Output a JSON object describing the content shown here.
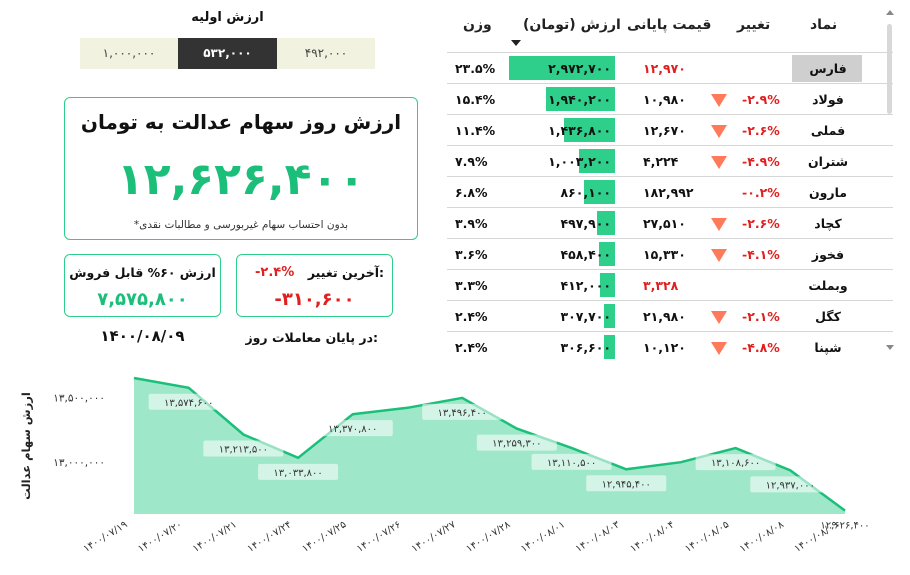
{
  "table": {
    "headers": {
      "symbol": "نماد",
      "change": "تغییر",
      "final_price": "قیمت پایانی",
      "value": "ارزش (تومان)",
      "weight": "وزن"
    },
    "rows": [
      {
        "symbol": "فارس",
        "change": "",
        "final_price": "۱۲,۹۷۰",
        "final_red": true,
        "value": "۲,۹۷۲,۷۰۰",
        "value_fraction": 1.0,
        "weight": "۲۳.۵%",
        "down": false,
        "highlight": true
      },
      {
        "symbol": "فولاد",
        "change": "-۲.۹%",
        "final_price": "۱۰,۹۸۰",
        "final_red": false,
        "value": "۱,۹۴۰,۲۰۰",
        "value_fraction": 0.653,
        "weight": "۱۵.۴%",
        "down": true,
        "highlight": false
      },
      {
        "symbol": "فملی",
        "change": "-۲.۶%",
        "final_price": "۱۲,۶۷۰",
        "final_red": false,
        "value": "۱,۴۳۶,۸۰۰",
        "value_fraction": 0.483,
        "weight": "۱۱.۴%",
        "down": true,
        "highlight": false
      },
      {
        "symbol": "شتران",
        "change": "-۴.۹%",
        "final_price": "۴,۲۲۴",
        "final_red": false,
        "value": "۱,۰۰۳,۲۰۰",
        "value_fraction": 0.337,
        "weight": "۷.۹%",
        "down": true,
        "highlight": false
      },
      {
        "symbol": "مارون",
        "change": "-۰.۲%",
        "final_price": "۱۸۲,۹۹۲",
        "final_red": false,
        "value": "۸۶۰,۱۰۰",
        "value_fraction": 0.289,
        "weight": "۶.۸%",
        "down": false,
        "highlight": false
      },
      {
        "symbol": "کچاد",
        "change": "-۲.۶%",
        "final_price": "۲۷,۵۱۰",
        "final_red": false,
        "value": "۴۹۷,۹۰۰",
        "value_fraction": 0.168,
        "weight": "۳.۹%",
        "down": true,
        "highlight": false
      },
      {
        "symbol": "فخوز",
        "change": "-۴.۱%",
        "final_price": "۱۵,۳۳۰",
        "final_red": false,
        "value": "۴۵۸,۴۰۰",
        "value_fraction": 0.154,
        "weight": "۳.۶%",
        "down": true,
        "highlight": false
      },
      {
        "symbol": "وبملت",
        "change": "",
        "final_price": "۳,۳۲۸",
        "final_red": true,
        "value": "۴۱۲,۰۰۰",
        "value_fraction": 0.139,
        "weight": "۳.۳%",
        "down": false,
        "highlight": false
      },
      {
        "symbol": "کگل",
        "change": "-۲.۱%",
        "final_price": "۲۱,۹۸۰",
        "final_red": false,
        "value": "۳۰۷,۷۰۰",
        "value_fraction": 0.104,
        "weight": "۲.۴%",
        "down": true,
        "highlight": false
      },
      {
        "symbol": "شپنا",
        "change": "-۴.۸%",
        "final_price": "۱۰,۱۲۰",
        "final_red": false,
        "value": "۳۰۶,۶۰۰",
        "value_fraction": 0.103,
        "weight": "۲.۴%",
        "down": true,
        "highlight": false
      }
    ]
  },
  "initial_value": {
    "title": "ارزش اولیه",
    "options": [
      "۱,۰۰۰,۰۰۰",
      "۵۳۲,۰۰۰",
      "۴۹۲,۰۰۰"
    ],
    "selected_index": 1
  },
  "summary": {
    "title": "ارزش روز سهام عدالت به تومان",
    "value": "۱۲,۶۲۶,۴۰۰",
    "note": "*بدون احتساب سهام غیربورسی و مطالبات نقدی"
  },
  "last_change": {
    "label": "آخرین تغییر:",
    "percent": "-۲.۴%",
    "value": "-۳۱۰,۶۰۰"
  },
  "sellable": {
    "label": "ارزش ۶۰% قابل فروش",
    "value": "۷,۵۷۵,۸۰۰"
  },
  "end_of_day": {
    "label": "در پایان معاملات روز:",
    "date": "۱۴۰۰/۰۸/۰۹"
  },
  "colors": {
    "accent": "#2ecf8b",
    "accent_dark": "#1bbf7a",
    "negative": "#e02020",
    "down_arrow": "#ff7a5a",
    "area_fill": "#8ee3bf"
  },
  "chart_data": {
    "type": "area",
    "ylabel": "ارزش سهام عدالت",
    "ylim": [
      12600000,
      13650000
    ],
    "yticks": [
      13000000,
      13500000
    ],
    "ytick_labels": [
      "۱۳,۰۰۰,۰۰۰",
      "۱۳,۵۰۰,۰۰۰"
    ],
    "x": [
      "۱۴۰۰/۰۷/۱۹",
      "۱۴۰۰/۰۷/۲۰",
      "۱۴۰۰/۰۷/۲۱",
      "۱۴۰۰/۰۷/۲۴",
      "۱۴۰۰/۰۷/۲۵",
      "۱۴۰۰/۰۷/۲۶",
      "۱۴۰۰/۰۷/۲۷",
      "۱۴۰۰/۰۷/۲۸",
      "۱۴۰۰/۰۸/۰۱",
      "۱۴۰۰/۰۸/۰۳",
      "۱۴۰۰/۰۸/۰۴",
      "۱۴۰۰/۰۸/۰۵",
      "۱۴۰۰/۰۸/۰۸",
      "۱۴۰۰/۰۸/۰۹"
    ],
    "values": [
      13650000,
      13574600,
      13213500,
      13033800,
      13370800,
      13420000,
      13496400,
      13259300,
      13110500,
      12945400,
      13000000,
      13108600,
      12937000,
      12626400
    ],
    "labels": [
      "",
      "۱۳,۵۷۴,۶۰۰",
      "۱۳,۲۱۳,۵۰۰",
      "۱۳,۰۳۳,۸۰۰",
      "۱۳,۳۷۰,۸۰۰",
      "",
      "۱۳,۴۹۶,۴۰۰",
      "۱۳,۲۵۹,۳۰۰",
      "۱۳,۱۱۰,۵۰۰",
      "۱۲,۹۴۵,۴۰۰",
      "",
      "۱۳,۱۰۸,۶۰۰",
      "۱۲,۹۳۷,۰۰۰",
      "۱۲,۶۲۶,۴۰۰"
    ],
    "grid": false,
    "legend": "none"
  }
}
